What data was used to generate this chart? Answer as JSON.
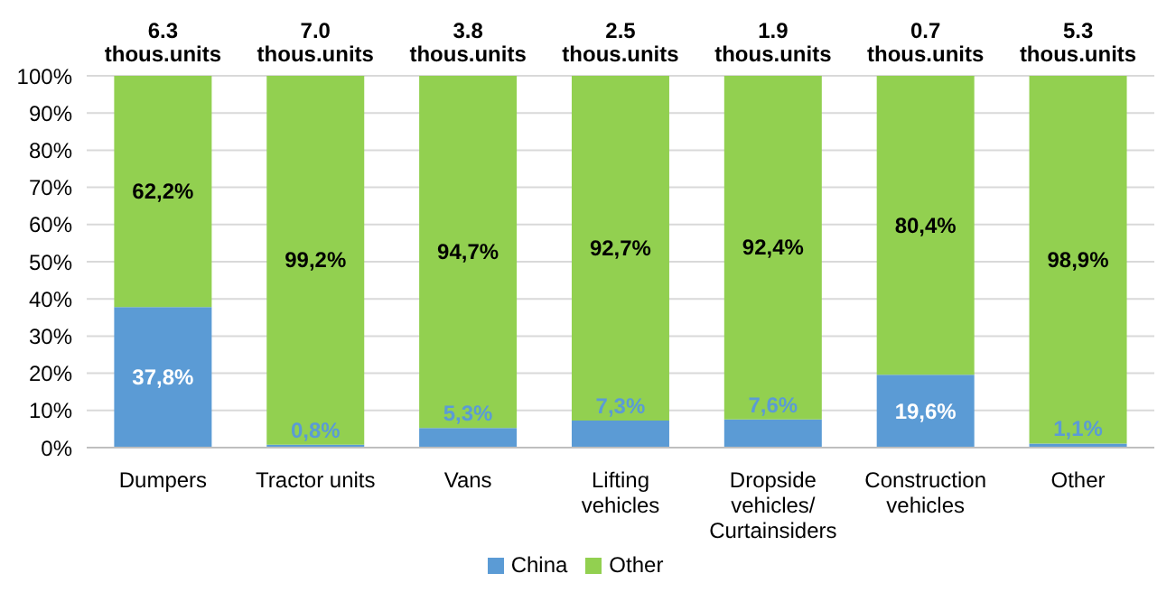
{
  "chart_data": {
    "type": "bar",
    "stacked": true,
    "categories": [
      "Dumpers",
      "Tractor units",
      "Vans",
      "Lifting vehicles",
      "Dropside vehicles/ Curtainsiders",
      "Construction vehicles",
      "Other"
    ],
    "series": [
      {
        "name": "China",
        "color": "#5b9bd5",
        "values": [
          37.8,
          0.8,
          5.3,
          7.3,
          7.6,
          19.6,
          1.1
        ],
        "value_labels": [
          "37,8%",
          "0,8%",
          "5,3%",
          "7,3%",
          "7,6%",
          "19,6%",
          "1,1%"
        ]
      },
      {
        "name": "Other",
        "color": "#92d050",
        "values": [
          62.2,
          99.2,
          94.7,
          92.7,
          92.4,
          80.4,
          98.9
        ],
        "value_labels": [
          "62,2%",
          "99,2%",
          "94,7%",
          "92,7%",
          "92,4%",
          "80,4%",
          "98,9%"
        ]
      }
    ],
    "annotations": [
      {
        "text": "6.3 thous.units",
        "x": "Dumpers",
        "y": 100
      },
      {
        "text": "7.0 thous.units",
        "x": "Tractor units",
        "y": 100
      },
      {
        "text": "3.8 thous.units",
        "x": "Vans",
        "y": 100
      },
      {
        "text": "2.5 thous.units",
        "x": "Lifting vehicles",
        "y": 100
      },
      {
        "text": "1.9 thous.units",
        "x": "Dropside vehicles/ Curtainsiders",
        "y": 100
      },
      {
        "text": "0.7 thous.units",
        "x": "Construction vehicles",
        "y": 100
      },
      {
        "text": "5.3 thous.units",
        "x": "Other",
        "y": 100
      }
    ],
    "ylim": [
      0,
      100
    ],
    "yticks": [
      {
        "value": 0,
        "label": "0%"
      },
      {
        "value": 10,
        "label": "10%"
      },
      {
        "value": 20,
        "label": "20%"
      },
      {
        "value": 30,
        "label": "30%"
      },
      {
        "value": 40,
        "label": "40%"
      },
      {
        "value": 50,
        "label": "50%"
      },
      {
        "value": 60,
        "label": "60%"
      },
      {
        "value": 70,
        "label": "70%"
      },
      {
        "value": 80,
        "label": "80%"
      },
      {
        "value": 90,
        "label": "90%"
      },
      {
        "value": 100,
        "label": "100%"
      }
    ],
    "grid": "y",
    "legend": "bottom"
  }
}
